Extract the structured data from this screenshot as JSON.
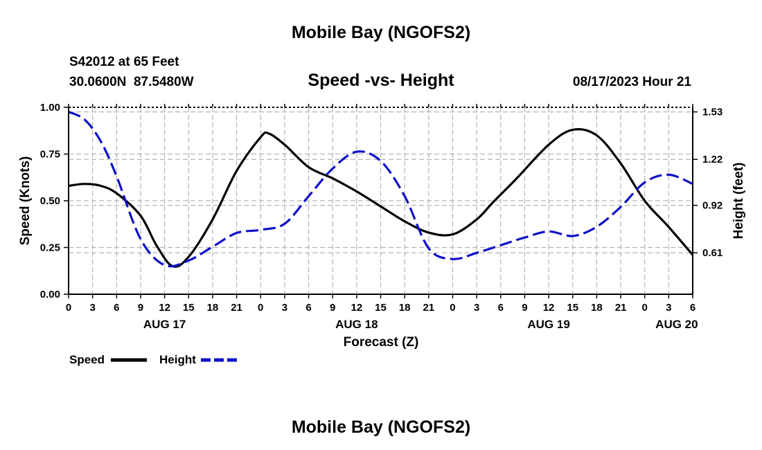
{
  "header": {
    "title": "Mobile Bay (NGOFS2)",
    "station": "S42012 at 65 Feet",
    "coords": "30.0600N  87.5480W",
    "subtitle": "Speed -vs- Height",
    "timestamp": "08/17/2023 Hour 21"
  },
  "footer": {
    "title": "Mobile Bay (NGOFS2)"
  },
  "legend": {
    "speed_label": "Speed",
    "height_label": "Height"
  },
  "chart_data": {
    "type": "line",
    "title": "Speed -vs- Height",
    "xlabel": "Forecast (Z)",
    "ylabel": "Speed (Knots)",
    "y2label": "Height (feet)",
    "x_range_hours": [
      0,
      78
    ],
    "ylim": [
      0,
      1
    ],
    "y2lim": [
      0.34,
      1.56
    ],
    "yticks": [
      0,
      0.25,
      0.5,
      0.75,
      1.0
    ],
    "ytick_labels": [
      "0.00",
      "0.25",
      "0.50",
      "0.75",
      "1.00"
    ],
    "y2ticks": [
      0.61,
      0.92,
      1.22,
      1.53
    ],
    "y2tick_labels": [
      "0.61",
      "0.92",
      "1.22",
      "1.53"
    ],
    "xticks": [
      0,
      3,
      6,
      9,
      12,
      15,
      18,
      21,
      24,
      27,
      30,
      33,
      36,
      39,
      42,
      45,
      48,
      51,
      54,
      57,
      60,
      63,
      66,
      69,
      72,
      75,
      78
    ],
    "xtick_labels": [
      "0",
      "3",
      "6",
      "9",
      "12",
      "15",
      "18",
      "21",
      "0",
      "3",
      "6",
      "9",
      "12",
      "15",
      "18",
      "21",
      "0",
      "3",
      "6",
      "9",
      "12",
      "15",
      "18",
      "21",
      "0",
      "3",
      "6"
    ],
    "date_labels": [
      {
        "hour": 12,
        "label": "AUG 17"
      },
      {
        "hour": 36,
        "label": "AUG 18"
      },
      {
        "hour": 60,
        "label": "AUG 19"
      },
      {
        "hour": 76,
        "label": "AUG 20"
      }
    ],
    "grid": true,
    "series": [
      {
        "name": "Speed",
        "axis": "left",
        "color": "#000000",
        "dash": "solid",
        "x": [
          0,
          2,
          4,
          6,
          9,
          11,
          13,
          15,
          18,
          21,
          24,
          25,
          27,
          30,
          33,
          36,
          39,
          42,
          45,
          48,
          51,
          53,
          56,
          60,
          63,
          66,
          69,
          72,
          75,
          78
        ],
        "values": [
          0.58,
          0.59,
          0.58,
          0.54,
          0.42,
          0.26,
          0.15,
          0.2,
          0.4,
          0.66,
          0.84,
          0.86,
          0.8,
          0.68,
          0.62,
          0.55,
          0.47,
          0.39,
          0.33,
          0.32,
          0.4,
          0.49,
          0.62,
          0.8,
          0.88,
          0.85,
          0.7,
          0.5,
          0.36,
          0.21
        ]
      },
      {
        "name": "Height",
        "axis": "right",
        "color": "#1010c8",
        "dash": "dashed",
        "x": [
          0,
          2,
          4,
          6,
          9,
          12,
          15,
          18,
          21,
          24,
          27,
          30,
          33,
          36,
          39,
          42,
          45,
          48,
          51,
          54,
          57,
          60,
          63,
          66,
          69,
          72,
          75,
          78
        ],
        "values": [
          1.53,
          1.48,
          1.34,
          1.11,
          0.7,
          0.53,
          0.56,
          0.65,
          0.74,
          0.76,
          0.8,
          0.98,
          1.16,
          1.27,
          1.21,
          0.98,
          0.64,
          0.57,
          0.61,
          0.66,
          0.71,
          0.75,
          0.72,
          0.78,
          0.91,
          1.07,
          1.12,
          1.06
        ]
      }
    ]
  }
}
